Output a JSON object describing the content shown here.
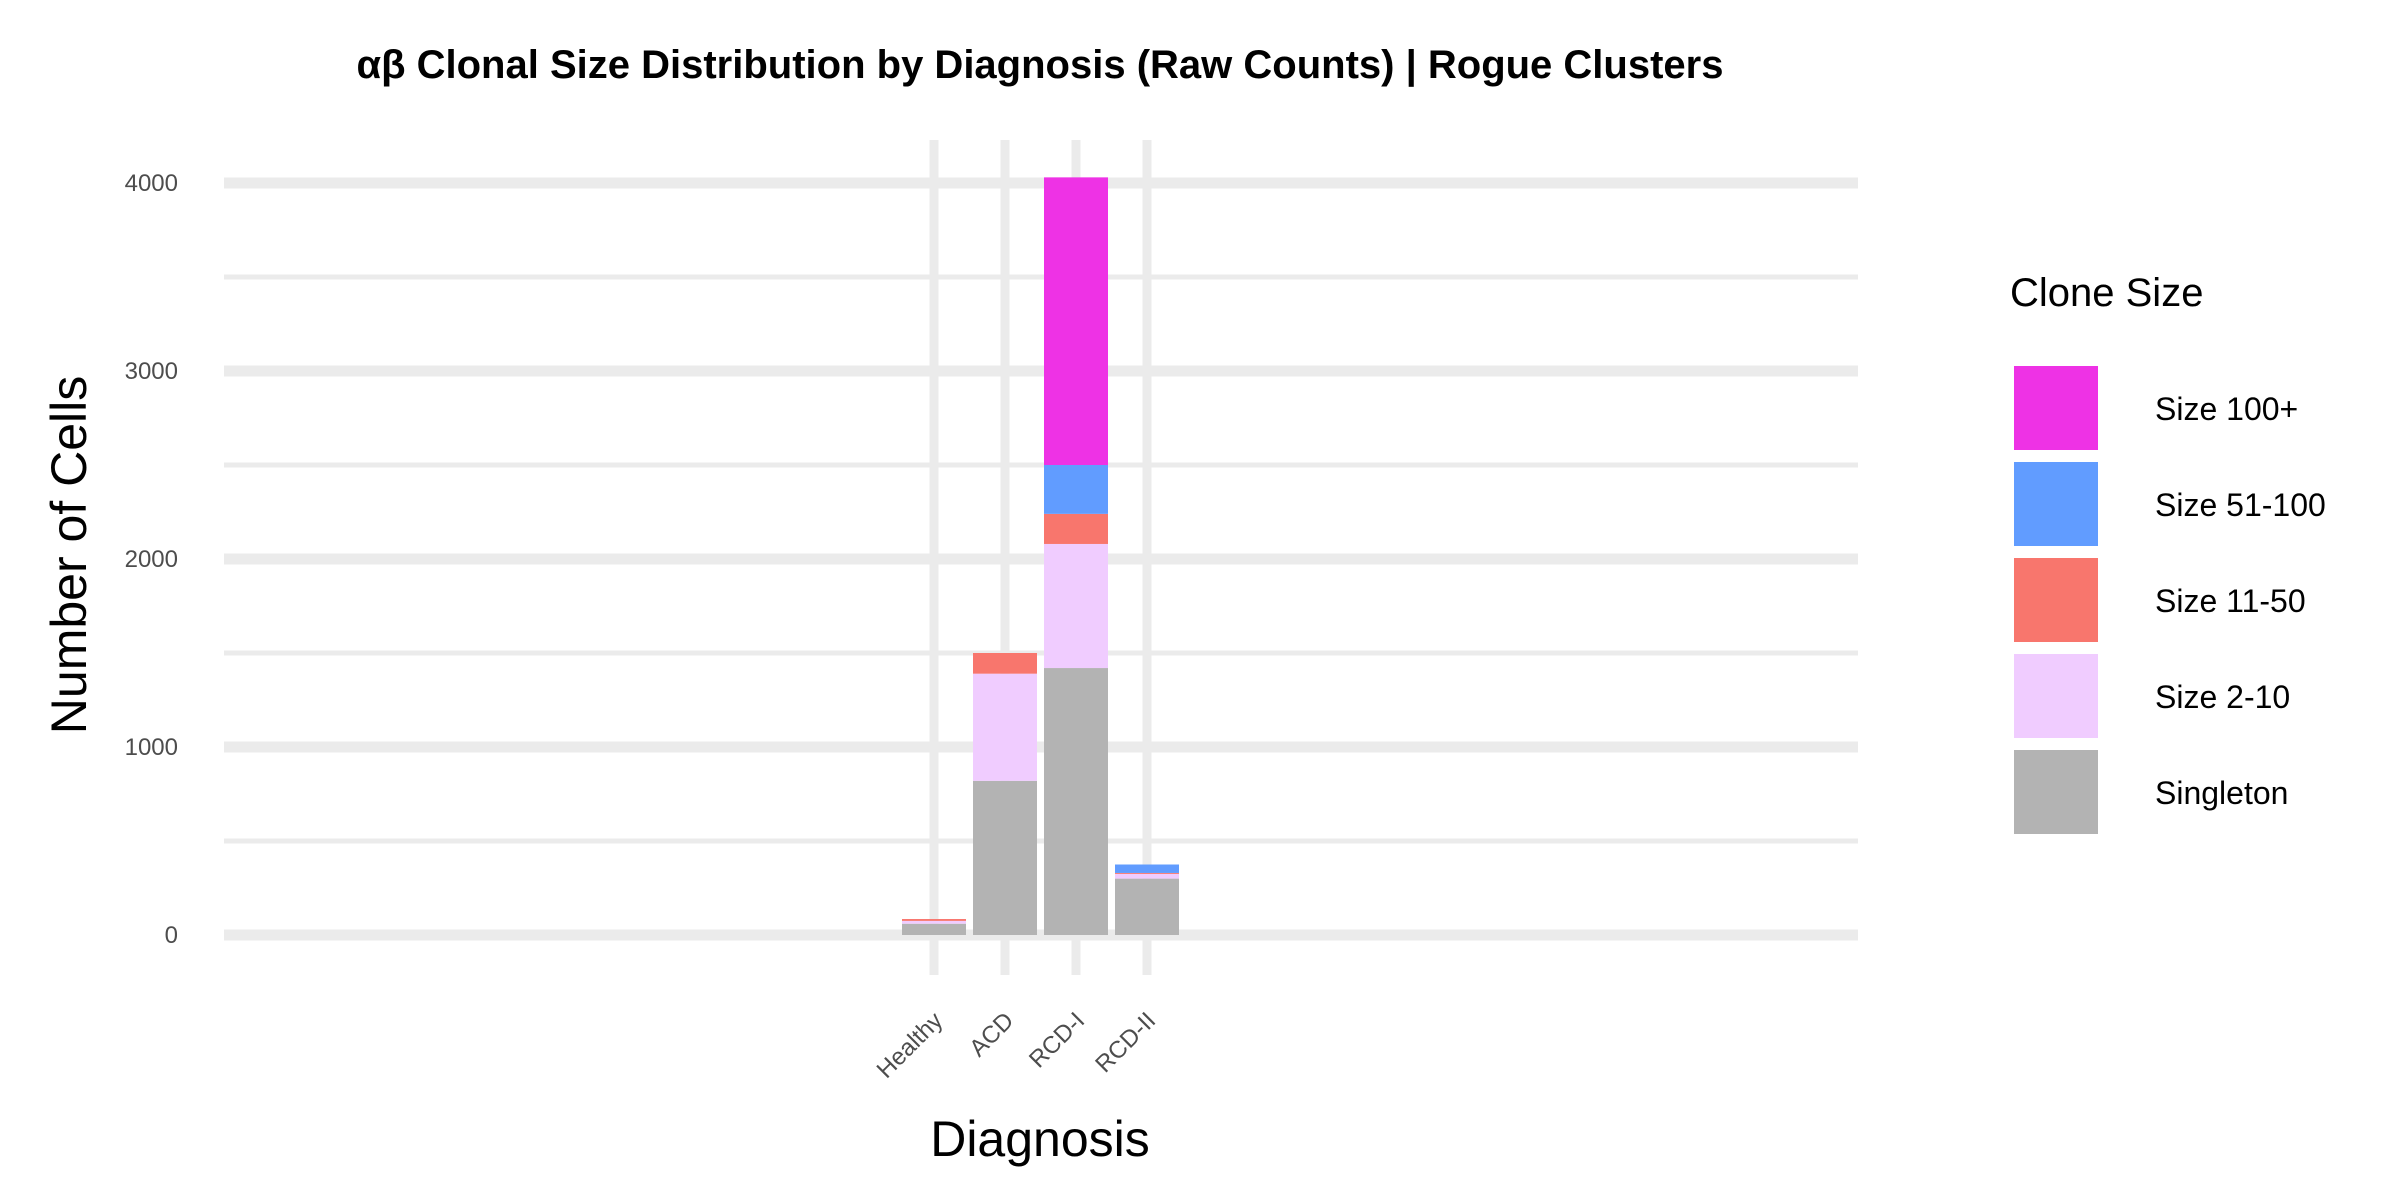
{
  "chart_data": {
    "type": "bar",
    "stacked": true,
    "title": "αβ Clonal Size Distribution by Diagnosis (Raw Counts) | Rogue Clusters",
    "xlabel": "Diagnosis",
    "ylabel": "Number of Cells",
    "categories": [
      "Healthy",
      "ACD",
      "RCD-I",
      "RCD-II"
    ],
    "y_ticks": [
      0,
      1000,
      2000,
      3000,
      4000
    ],
    "ylim": [
      -200,
      4230
    ],
    "grid": true,
    "legend": {
      "title": "Clone Size",
      "position": "right"
    },
    "series": [
      {
        "name": "Singleton",
        "color": "#B3B3B3",
        "values": [
          60,
          820,
          1420,
          300
        ]
      },
      {
        "name": "Size 2-10",
        "color": "#F0CCFF",
        "values": [
          15,
          570,
          660,
          25
        ]
      },
      {
        "name": "Size 11-50",
        "color": "#F8766D",
        "values": [
          10,
          110,
          160,
          5
        ]
      },
      {
        "name": "Size 51-100",
        "color": "#619CFF",
        "values": [
          0,
          0,
          260,
          45
        ]
      },
      {
        "name": "Size 100+",
        "color": "#EE32E5",
        "values": [
          0,
          0,
          1530,
          0
        ]
      }
    ],
    "legend_order": [
      "Size 100+",
      "Size 51-100",
      "Size 11-50",
      "Size 2-10",
      "Singleton"
    ]
  }
}
